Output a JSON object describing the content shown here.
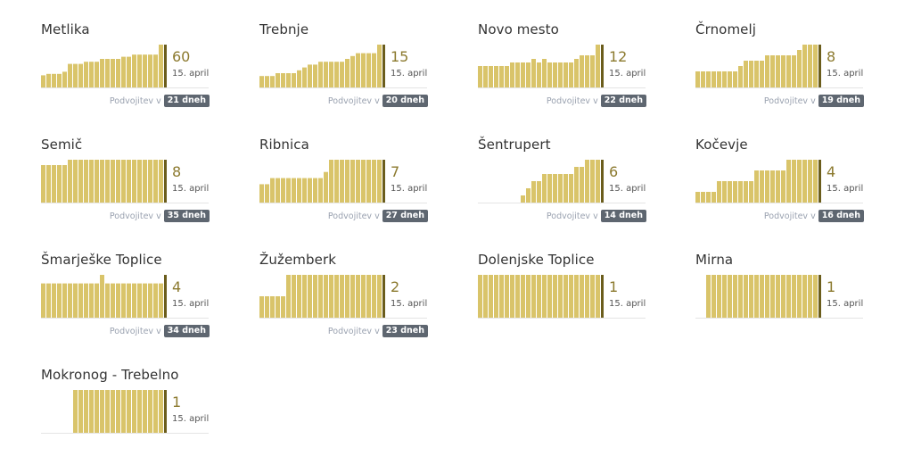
{
  "date_label": "15. april",
  "doubling_prefix": "Podvojitev v",
  "colors": {
    "bar": "#d9c46a",
    "marker": "#6b5d1c",
    "value": "#8c7a2f",
    "badge": "#5e6670"
  },
  "chart_data": [
    {
      "type": "bar",
      "title": "Metlika",
      "value": "60",
      "doubling": "21 dneh",
      "values": [
        17,
        19,
        19,
        19,
        22,
        33,
        33,
        33,
        36,
        36,
        36,
        40,
        40,
        40,
        40,
        43,
        43,
        46,
        46,
        46,
        46,
        46,
        60
      ]
    },
    {
      "type": "bar",
      "title": "Trebnje",
      "value": "15",
      "doubling": "20 dneh",
      "values": [
        4,
        4,
        4,
        5,
        5,
        5,
        5,
        6,
        7,
        8,
        8,
        9,
        9,
        9,
        9,
        9,
        10,
        11,
        12,
        12,
        12,
        12,
        15
      ]
    },
    {
      "type": "bar",
      "title": "Novo mesto",
      "value": "12",
      "doubling": "22 dneh",
      "values": [
        6,
        6,
        6,
        6,
        6,
        6,
        7,
        7,
        7,
        7,
        8,
        7,
        8,
        7,
        7,
        7,
        7,
        7,
        8,
        9,
        9,
        9,
        12
      ]
    },
    {
      "type": "bar",
      "title": "Črnomelj",
      "value": "8",
      "doubling": "19 dneh",
      "values": [
        3,
        3,
        3,
        3,
        3,
        3,
        3,
        3,
        4,
        5,
        5,
        5,
        5,
        6,
        6,
        6,
        6,
        6,
        6,
        7,
        8,
        8,
        8
      ]
    },
    {
      "type": "bar",
      "title": "Semič",
      "value": "8",
      "doubling": "35 dneh",
      "values": [
        7,
        7,
        7,
        7,
        7,
        8,
        8,
        8,
        8,
        8,
        8,
        8,
        8,
        8,
        8,
        8,
        8,
        8,
        8,
        8,
        8,
        8,
        8
      ]
    },
    {
      "type": "bar",
      "title": "Ribnica",
      "value": "7",
      "doubling": "27 dneh",
      "values": [
        3,
        3,
        4,
        4,
        4,
        4,
        4,
        4,
        4,
        4,
        4,
        4,
        5,
        7,
        7,
        7,
        7,
        7,
        7,
        7,
        7,
        7,
        7
      ]
    },
    {
      "type": "bar",
      "title": "Šentrupert",
      "value": "6",
      "doubling": "14 dneh",
      "values": [
        0,
        0,
        0,
        0,
        0,
        0,
        0,
        0,
        1,
        2,
        3,
        3,
        4,
        4,
        4,
        4,
        4,
        4,
        5,
        5,
        6,
        6,
        6
      ]
    },
    {
      "type": "bar",
      "title": "Kočevje",
      "value": "4",
      "doubling": "16 dneh",
      "values": [
        1,
        1,
        1,
        1,
        2,
        2,
        2,
        2,
        2,
        2,
        2,
        3,
        3,
        3,
        3,
        3,
        3,
        4,
        4,
        4,
        4,
        4,
        4
      ]
    },
    {
      "type": "bar",
      "title": "Šmarješke Toplice",
      "value": "4",
      "doubling": "34 dneh",
      "values": [
        4,
        4,
        4,
        4,
        4,
        4,
        4,
        4,
        4,
        4,
        4,
        5,
        4,
        4,
        4,
        4,
        4,
        4,
        4,
        4,
        4,
        4,
        4
      ]
    },
    {
      "type": "bar",
      "title": "Žužemberk",
      "value": "2",
      "doubling": "23 dneh",
      "values": [
        1,
        1,
        1,
        1,
        1,
        2,
        2,
        2,
        2,
        2,
        2,
        2,
        2,
        2,
        2,
        2,
        2,
        2,
        2,
        2,
        2,
        2,
        2
      ]
    },
    {
      "type": "bar",
      "title": "Dolenjske Toplice",
      "value": "1",
      "doubling": "",
      "values": [
        1,
        1,
        1,
        1,
        1,
        1,
        1,
        1,
        1,
        1,
        1,
        1,
        1,
        1,
        1,
        1,
        1,
        1,
        1,
        1,
        1,
        1,
        1
      ]
    },
    {
      "type": "bar",
      "title": "Mirna",
      "value": "1",
      "doubling": "",
      "values": [
        0,
        0,
        1,
        1,
        1,
        1,
        1,
        1,
        1,
        1,
        1,
        1,
        1,
        1,
        1,
        1,
        1,
        1,
        1,
        1,
        1,
        1,
        1
      ]
    },
    {
      "type": "bar",
      "title": "Mokronog - Trebelno",
      "value": "1",
      "doubling": "",
      "values": [
        0,
        0,
        0,
        0,
        0,
        0,
        1,
        1,
        1,
        1,
        1,
        1,
        1,
        1,
        1,
        1,
        1,
        1,
        1,
        1,
        1,
        1,
        1
      ]
    }
  ]
}
